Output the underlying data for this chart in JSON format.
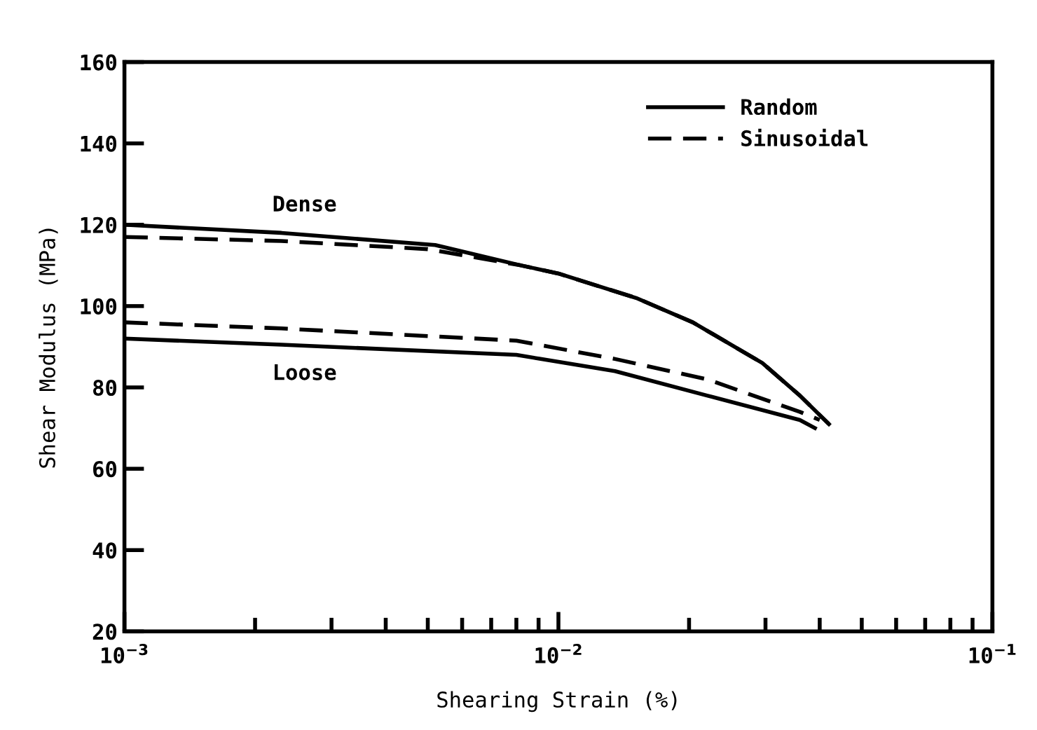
{
  "chart_data": {
    "type": "line",
    "xlabel": "Shearing Strain (%)",
    "ylabel": "Shear Modulus (MPa)",
    "log": "x",
    "xlim": [
      0.001,
      0.1
    ],
    "xticks": [
      {
        "value": 0.001,
        "label": "10$^{−3}$"
      },
      {
        "value": 0.01,
        "label": "10$^{−2}$"
      },
      {
        "value": 0.1,
        "label": "10$^{−1}$"
      }
    ],
    "ylim": [
      20,
      160
    ],
    "yticks": [
      20,
      40,
      60,
      80,
      100,
      120,
      140,
      160
    ],
    "grid": false,
    "legend": "top right",
    "marker": "none",
    "series": [
      {
        "name": "Random",
        "color": "#000000",
        "line_style": "solid",
        "x": [
          0.001,
          0.0023,
          0.0052,
          0.0082,
          0.01,
          0.0151,
          0.0204,
          0.0295,
          0.036,
          0.042
        ],
        "values": [
          120,
          118,
          115,
          110,
          108,
          102,
          96,
          86,
          78,
          71
        ]
      },
      {
        "name": "Sinusoidal",
        "color": "#000000",
        "line_style": "dashed",
        "x": [
          0.001,
          0.0023,
          0.005,
          0.0082,
          0.01,
          0.0151,
          0.0204,
          0.0295,
          0.036,
          0.042
        ],
        "values": [
          117,
          116,
          114,
          110,
          108,
          102,
          96,
          86,
          78,
          71
        ]
      },
      {
        "color": "#000000",
        "line_style": "dashed",
        "x": [
          0.001,
          0.0023,
          0.008,
          0.0135,
          0.022,
          0.036,
          0.04
        ],
        "values": [
          96,
          94.5,
          91.5,
          87,
          82,
          74,
          72
        ]
      },
      {
        "color": "#000000",
        "line_style": "solid",
        "x": [
          0.001,
          0.0023,
          0.008,
          0.0135,
          0.022,
          0.036,
          0.039
        ],
        "values": [
          92,
          90.5,
          88,
          84,
          78,
          72,
          70
        ]
      }
    ],
    "annotations": [
      {
        "text": "Dense",
        "x": 0.0026,
        "y": 119
      },
      {
        "text": "Loose",
        "x": 0.0026,
        "y": 90
      }
    ]
  }
}
